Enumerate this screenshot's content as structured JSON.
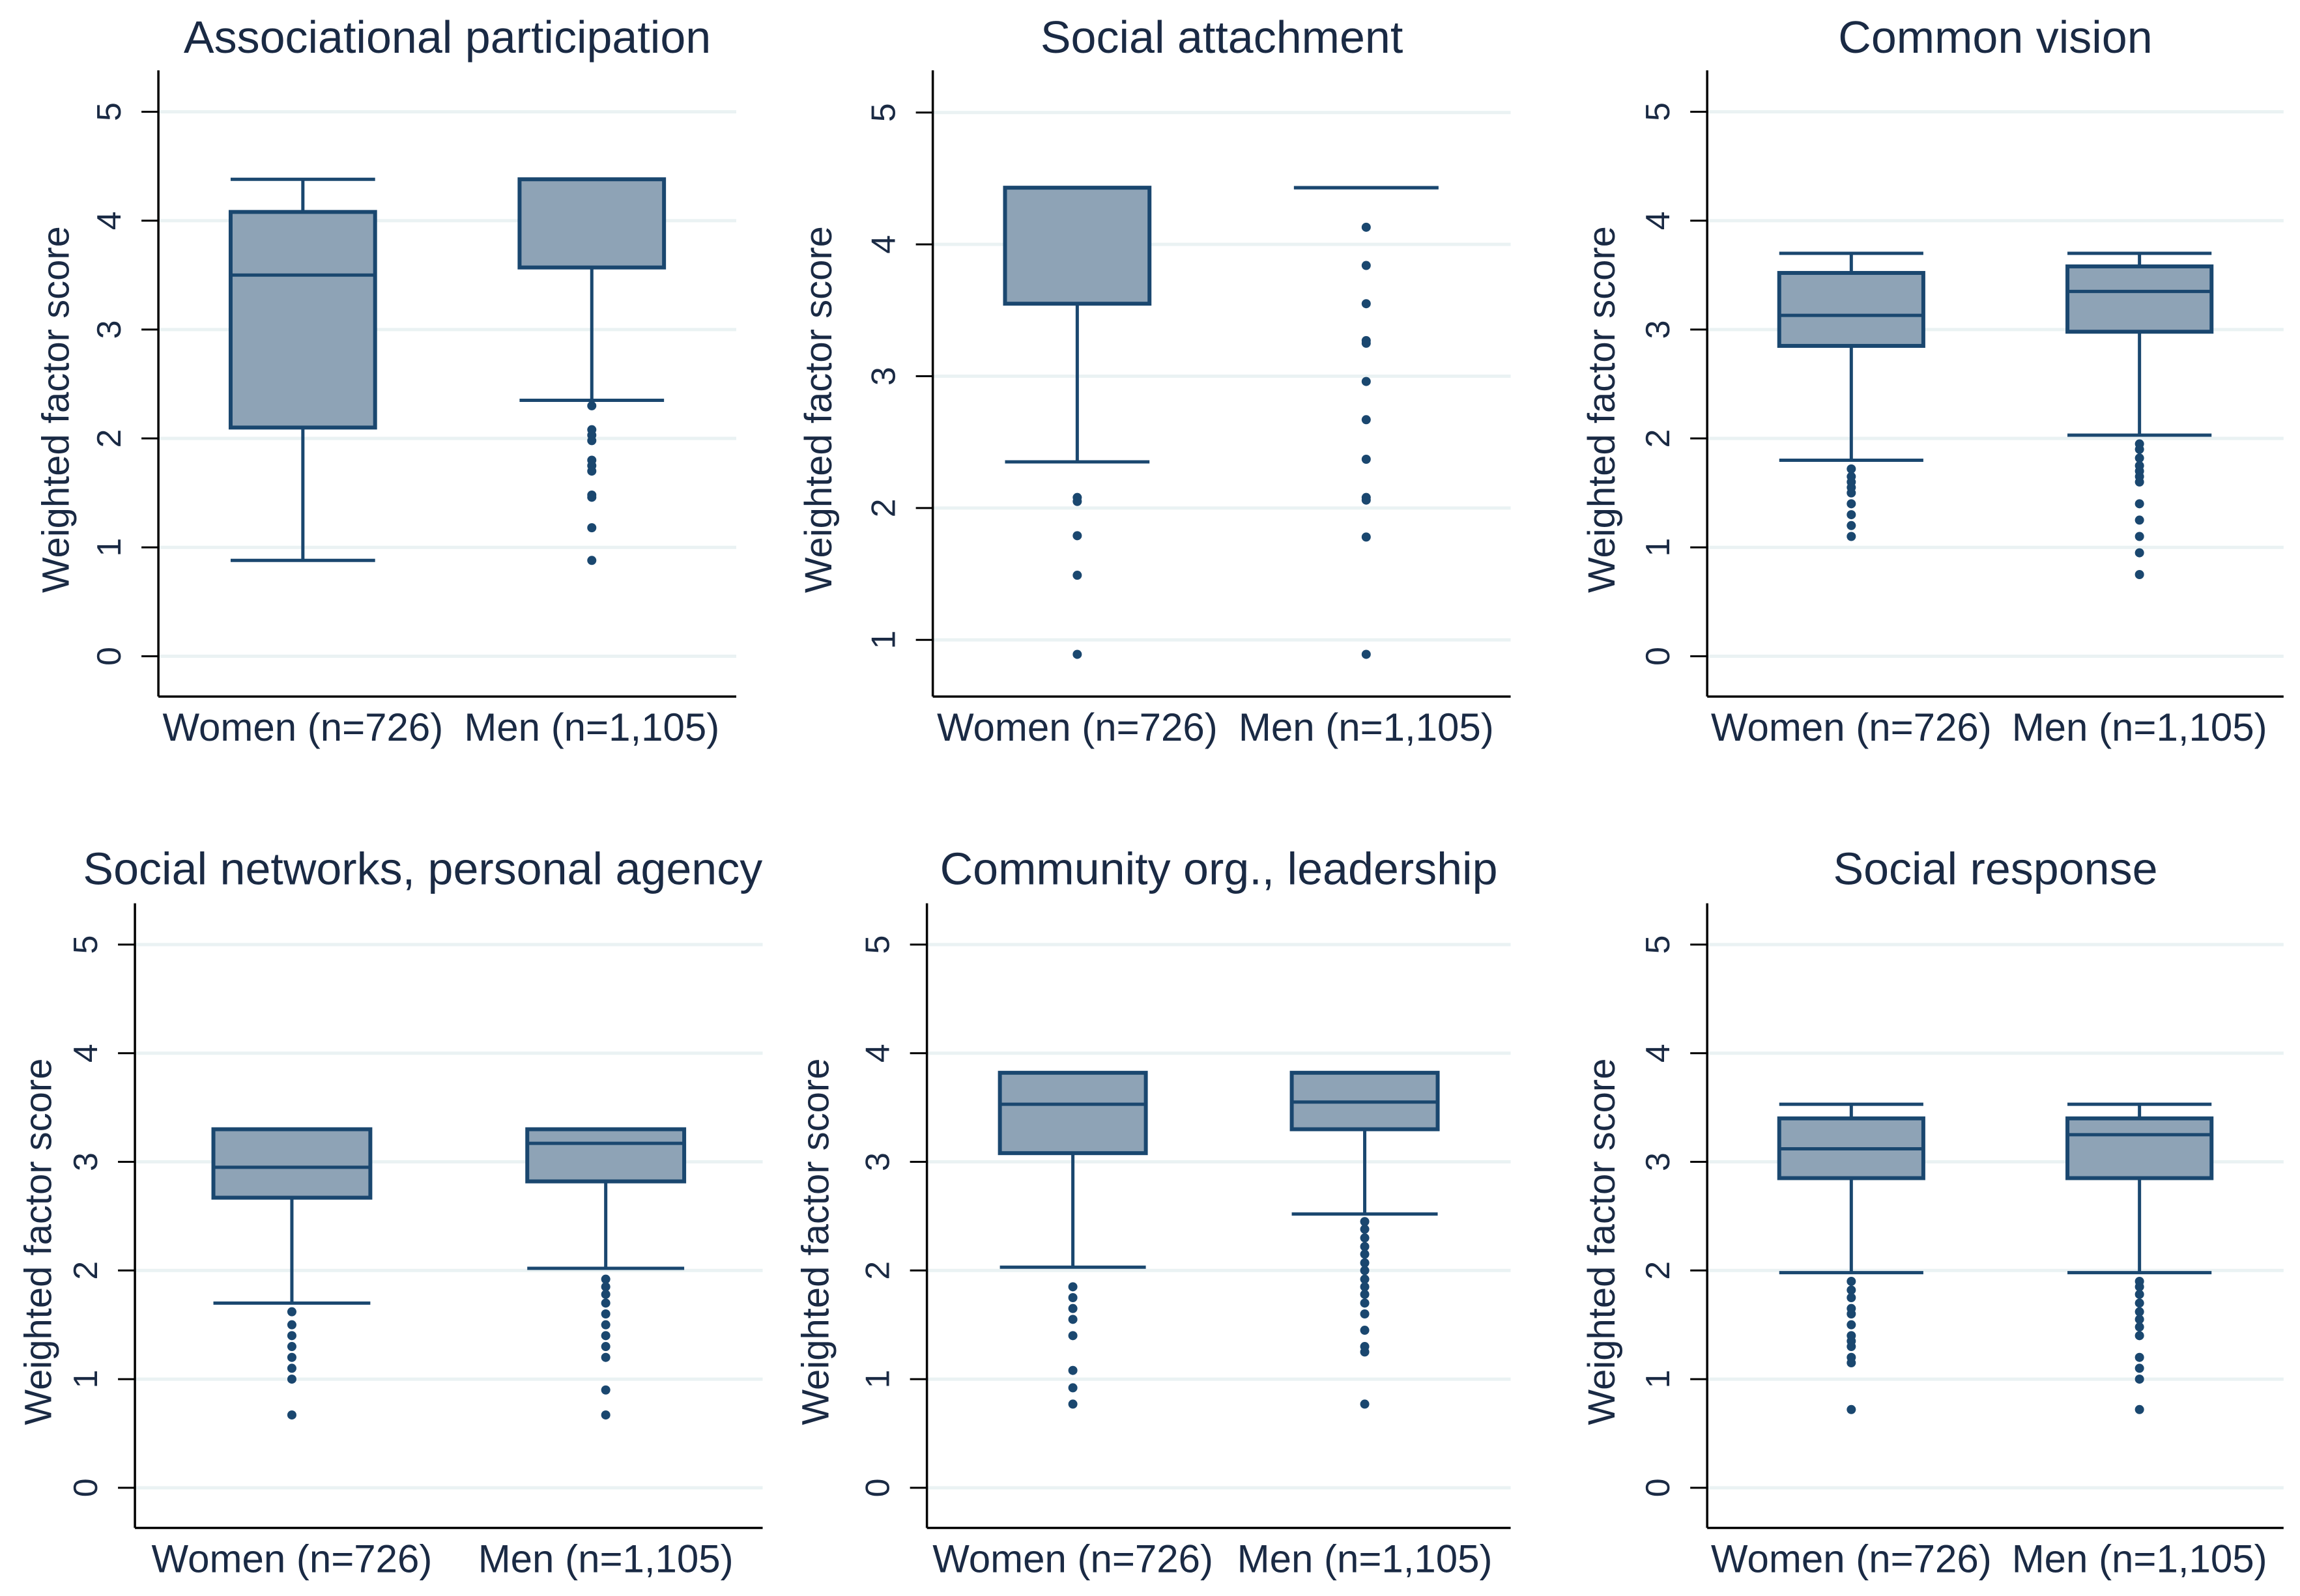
{
  "colors": {
    "box_fill": "#8ea3b6",
    "line": "#1a476f",
    "grid": "#eaf2f3",
    "axis": "#000000",
    "text": "#1a2a44"
  },
  "chart_data": [
    {
      "type": "box",
      "title": "Associational participation",
      "ylabel": "Weighted factor score",
      "ylim": [
        -0.37,
        5.38
      ],
      "yticks": [
        "0",
        "1",
        "2",
        "3",
        "4",
        "5"
      ],
      "grid": true,
      "categories": [
        "Women (n=726)",
        "Men (n=1,105)"
      ],
      "groups": [
        {
          "whisker_low": 0.88,
          "q1": 2.1,
          "median": 3.5,
          "q3": 4.08,
          "whisker_high": 4.38,
          "outliers": []
        },
        {
          "whisker_low": 2.35,
          "q1": 3.57,
          "median": 4.38,
          "q3": 4.38,
          "whisker_high": 4.38,
          "outliers": [
            2.3,
            2.08,
            2.03,
            1.98,
            1.8,
            1.75,
            1.7,
            1.48,
            1.46,
            1.18,
            0.88
          ]
        }
      ]
    },
    {
      "type": "box",
      "title": "Social attachment",
      "ylabel": "Weighted factor score",
      "ylim": [
        0.57,
        5.32
      ],
      "yticks": [
        "1",
        "2",
        "3",
        "4",
        "5"
      ],
      "grid": true,
      "categories": [
        "Women (n=726)",
        "Men (n=1,105)"
      ],
      "groups": [
        {
          "whisker_low": 2.35,
          "q1": 3.55,
          "median": 4.43,
          "q3": 4.43,
          "whisker_high": 4.43,
          "outliers": [
            2.08,
            2.05,
            1.79,
            1.49,
            0.89
          ]
        },
        {
          "whisker_low": 4.43,
          "q1": 4.43,
          "median": 4.43,
          "q3": 4.43,
          "whisker_high": 4.43,
          "outliers": [
            4.13,
            3.84,
            3.55,
            3.27,
            3.25,
            2.96,
            2.67,
            2.37,
            2.08,
            2.06,
            1.78,
            0.89
          ]
        }
      ]
    },
    {
      "type": "box",
      "title": "Common vision",
      "ylabel": "Weighted factor score",
      "ylim": [
        -0.37,
        5.38
      ],
      "yticks": [
        "0",
        "1",
        "2",
        "3",
        "4",
        "5"
      ],
      "grid": true,
      "categories": [
        "Women (n=726)",
        "Men (n=1,105)"
      ],
      "groups": [
        {
          "whisker_low": 1.8,
          "q1": 2.85,
          "median": 3.13,
          "q3": 3.52,
          "whisker_high": 3.7,
          "outliers": [
            1.72,
            1.65,
            1.6,
            1.55,
            1.5,
            1.4,
            1.3,
            1.2,
            1.1
          ]
        },
        {
          "whisker_low": 2.03,
          "q1": 2.98,
          "median": 3.35,
          "q3": 3.58,
          "whisker_high": 3.7,
          "outliers": [
            1.95,
            1.9,
            1.82,
            1.75,
            1.7,
            1.65,
            1.6,
            1.4,
            1.25,
            1.1,
            0.95,
            0.75
          ]
        }
      ]
    },
    {
      "type": "box",
      "title": "Social networks, personal agency",
      "ylabel": "Weighted factor score",
      "ylim": [
        -0.37,
        5.38
      ],
      "yticks": [
        "0",
        "1",
        "2",
        "3",
        "4",
        "5"
      ],
      "grid": true,
      "categories": [
        "Women (n=726)",
        "Men (n=1,105)"
      ],
      "groups": [
        {
          "whisker_low": 1.7,
          "q1": 2.67,
          "median": 2.95,
          "q3": 3.3,
          "whisker_high": 3.3,
          "outliers": [
            1.62,
            1.5,
            1.4,
            1.3,
            1.2,
            1.1,
            1.0,
            0.67
          ]
        },
        {
          "whisker_low": 2.02,
          "q1": 2.82,
          "median": 3.17,
          "q3": 3.3,
          "whisker_high": 3.3,
          "outliers": [
            1.92,
            1.85,
            1.78,
            1.7,
            1.6,
            1.5,
            1.4,
            1.3,
            1.2,
            0.9,
            0.67
          ]
        }
      ]
    },
    {
      "type": "box",
      "title": "Community org., leadership",
      "ylabel": "Weighted factor score",
      "ylim": [
        -0.37,
        5.38
      ],
      "yticks": [
        "0",
        "1",
        "2",
        "3",
        "4",
        "5"
      ],
      "grid": true,
      "categories": [
        "Women (n=726)",
        "Men (n=1,105)"
      ],
      "groups": [
        {
          "whisker_low": 2.03,
          "q1": 3.08,
          "median": 3.53,
          "q3": 3.82,
          "whisker_high": 3.82,
          "outliers": [
            1.85,
            1.75,
            1.65,
            1.55,
            1.4,
            1.08,
            0.92,
            0.77
          ]
        },
        {
          "whisker_low": 2.52,
          "q1": 3.3,
          "median": 3.55,
          "q3": 3.82,
          "whisker_high": 3.82,
          "outliers": [
            2.45,
            2.38,
            2.3,
            2.22,
            2.15,
            2.07,
            2.0,
            1.92,
            1.85,
            1.78,
            1.7,
            1.6,
            1.45,
            1.3,
            1.25,
            0.77
          ]
        }
      ]
    },
    {
      "type": "box",
      "title": "Social response",
      "ylabel": "Weighted factor score",
      "ylim": [
        -0.37,
        5.38
      ],
      "yticks": [
        "0",
        "1",
        "2",
        "3",
        "4",
        "5"
      ],
      "grid": true,
      "categories": [
        "Women (n=726)",
        "Men (n=1,105)"
      ],
      "groups": [
        {
          "whisker_low": 1.98,
          "q1": 2.85,
          "median": 3.12,
          "q3": 3.4,
          "whisker_high": 3.53,
          "outliers": [
            1.9,
            1.82,
            1.75,
            1.65,
            1.6,
            1.5,
            1.4,
            1.35,
            1.3,
            1.2,
            1.15,
            0.72
          ]
        },
        {
          "whisker_low": 1.98,
          "q1": 2.85,
          "median": 3.25,
          "q3": 3.4,
          "whisker_high": 3.53,
          "outliers": [
            1.9,
            1.85,
            1.78,
            1.7,
            1.62,
            1.55,
            1.48,
            1.4,
            1.2,
            1.1,
            1.0,
            0.72
          ]
        }
      ]
    }
  ]
}
